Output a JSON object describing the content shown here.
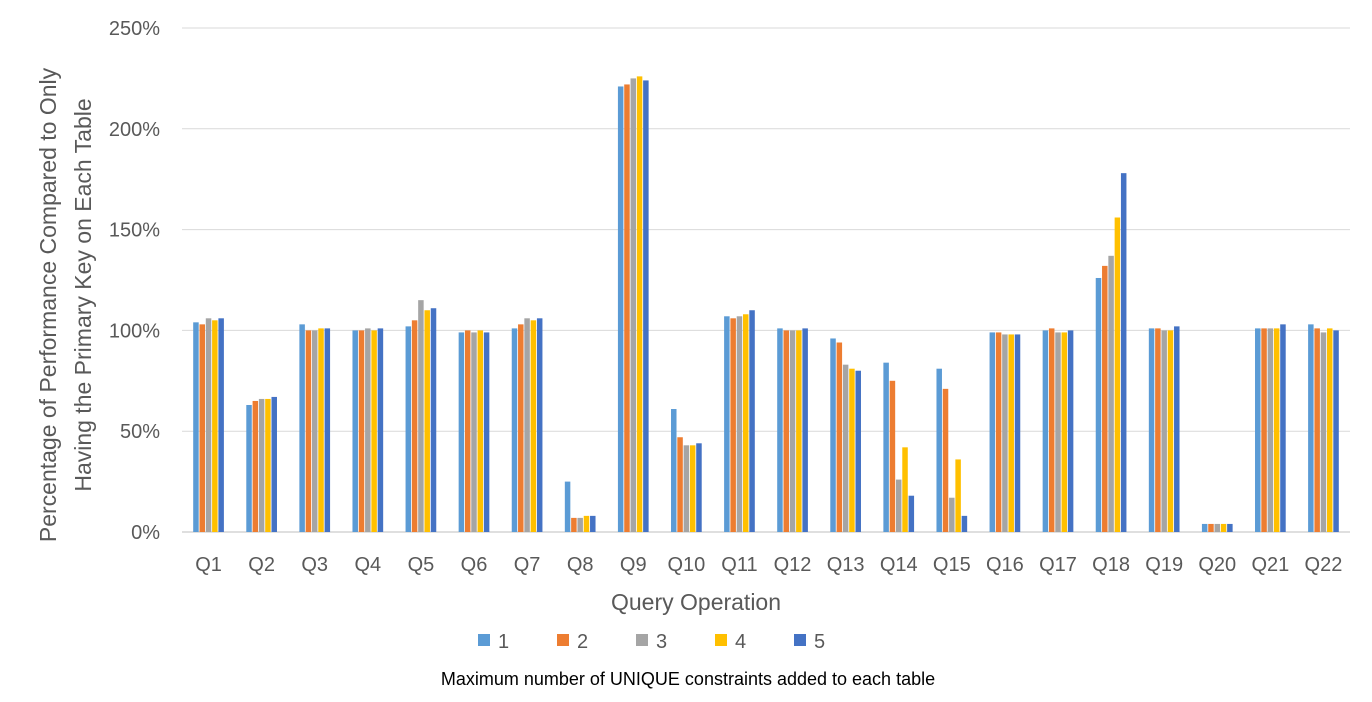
{
  "chart_data": {
    "type": "bar",
    "title": "",
    "xlabel": "Query Operation",
    "ylabel_lines": [
      "Percentage of Performance Compared to Only",
      "Having the Primary Key on Each Table"
    ],
    "ylim": [
      0,
      250
    ],
    "yticks": [
      0,
      50,
      100,
      150,
      200,
      250
    ],
    "ytick_labels": [
      "0%",
      "50%",
      "100%",
      "150%",
      "200%",
      "250%"
    ],
    "grid": true,
    "legend_position": "bottom",
    "legend_caption": "Maximum number of UNIQUE constraints added to each table",
    "categories": [
      "Q1",
      "Q2",
      "Q3",
      "Q4",
      "Q5",
      "Q6",
      "Q7",
      "Q8",
      "Q9",
      "Q10",
      "Q11",
      "Q12",
      "Q13",
      "Q14",
      "Q15",
      "Q16",
      "Q17",
      "Q18",
      "Q19",
      "Q20",
      "Q21",
      "Q22"
    ],
    "series": [
      {
        "name": "1",
        "color": "#5B9BD5",
        "values": [
          104,
          63,
          103,
          100,
          102,
          99,
          101,
          25,
          221,
          61,
          107,
          101,
          96,
          84,
          81,
          99,
          100,
          126,
          101,
          4,
          101,
          103
        ]
      },
      {
        "name": "2",
        "color": "#ED7D31",
        "values": [
          103,
          65,
          100,
          100,
          105,
          100,
          103,
          7,
          222,
          47,
          106,
          100,
          94,
          75,
          71,
          99,
          101,
          132,
          101,
          4,
          101,
          101
        ]
      },
      {
        "name": "3",
        "color": "#A5A5A5",
        "values": [
          106,
          66,
          100,
          101,
          115,
          99,
          106,
          7,
          225,
          43,
          107,
          100,
          83,
          26,
          17,
          98,
          99,
          137,
          100,
          4,
          101,
          99
        ]
      },
      {
        "name": "4",
        "color": "#FFC000",
        "values": [
          105,
          66,
          101,
          100,
          110,
          100,
          105,
          8,
          226,
          43,
          108,
          100,
          81,
          42,
          36,
          98,
          99,
          156,
          100,
          4,
          101,
          101
        ]
      },
      {
        "name": "5",
        "color": "#4472C4",
        "values": [
          106,
          67,
          101,
          101,
          111,
          99,
          106,
          8,
          224,
          44,
          110,
          101,
          80,
          18,
          8,
          98,
          100,
          178,
          102,
          4,
          103,
          100
        ]
      }
    ]
  }
}
